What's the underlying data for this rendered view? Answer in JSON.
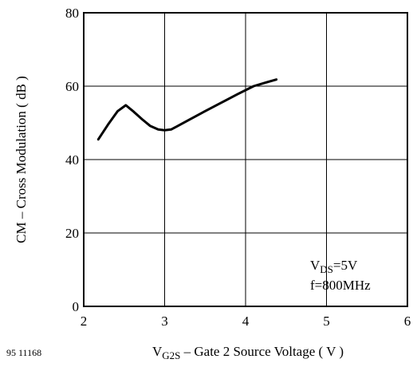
{
  "figure_code": "95 11168",
  "chart_data": {
    "type": "line",
    "xlabel": {
      "prefix": "V",
      "subscript": "G2S",
      "rest": " – Gate 2 Source Voltage ( V )"
    },
    "ylabel": "CM – Cross Modulation ( dB )",
    "xlim": [
      2,
      6
    ],
    "ylim": [
      0,
      80
    ],
    "x_ticks": [
      "2",
      "3",
      "4",
      "5",
      "6"
    ],
    "y_ticks": [
      "0",
      "20",
      "40",
      "60",
      "80"
    ],
    "grid": true,
    "annotation": {
      "line1_prefix": "V",
      "line1_subscript": "DS",
      "line1_rest": "=5V",
      "line2": "f=800MHz"
    },
    "series": [
      {
        "x": [
          2.18,
          2.3,
          2.42,
          2.52,
          2.62,
          2.72,
          2.82,
          2.92,
          3.0,
          3.08,
          3.15,
          3.3,
          3.5,
          3.7,
          3.9,
          4.1,
          4.25,
          4.38
        ],
        "y": [
          45.5,
          49.5,
          53.2,
          54.8,
          53.0,
          51.0,
          49.2,
          48.2,
          48.0,
          48.2,
          49.0,
          50.8,
          53.2,
          55.5,
          57.8,
          60.0,
          61.0,
          61.8
        ]
      }
    ]
  }
}
